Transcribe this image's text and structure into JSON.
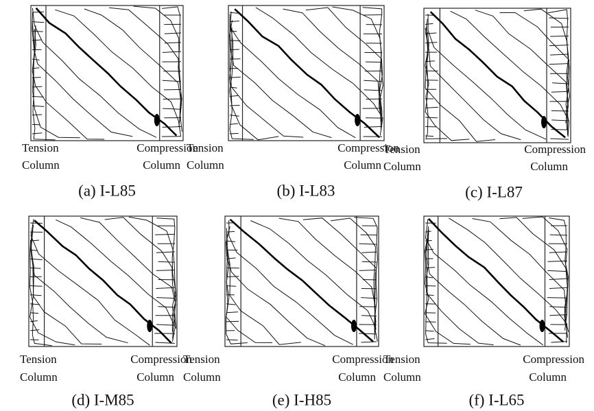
{
  "panels": [
    {
      "tension_label": "Tension",
      "tension_sub": "Column",
      "compression_label": "Compression",
      "compression_sub": "Column",
      "caption": "(a) I-L85"
    },
    {
      "tension_label": "Tension",
      "tension_sub": "Column",
      "compression_label": "Compression",
      "compression_sub": "Column",
      "caption": "(b) I-L83"
    },
    {
      "tension_label": "Tension",
      "tension_sub": "Column",
      "compression_label": "Compression",
      "compression_sub": "Column",
      "caption": "(c) I-L87"
    },
    {
      "tension_label": "Tension",
      "tension_sub": "Column",
      "compression_label": "Compression",
      "compression_sub": "Column",
      "caption": "(d) I-M85"
    },
    {
      "tension_label": "Tension",
      "tension_sub": "Column",
      "compression_label": "Compression",
      "compression_sub": "Column",
      "caption": "(e) I-H85"
    },
    {
      "tension_label": "Tension",
      "tension_sub": "Column",
      "compression_label": "Compression",
      "compression_sub": "Column",
      "caption": "(f) I-L65"
    }
  ]
}
